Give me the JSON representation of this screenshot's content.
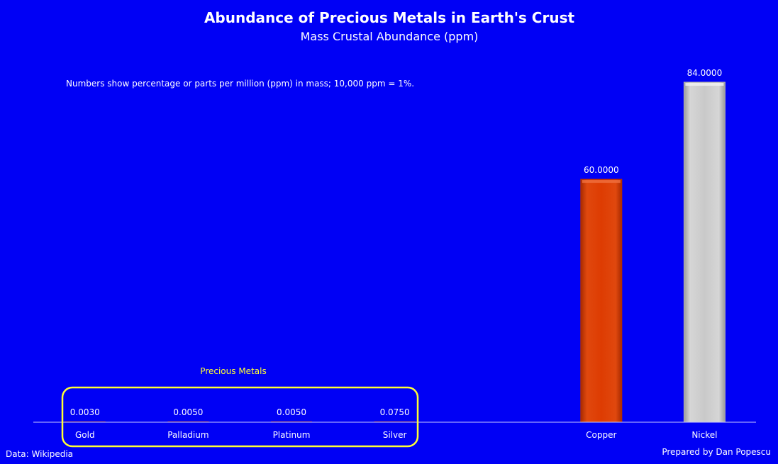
{
  "chart_data": {
    "type": "bar",
    "title": "Abundance of Precious Metals in Earth's Crust",
    "subtitle": "Mass Crustal Abundance  (ppm)",
    "note": "Numbers show percentage or parts per million (ppm) in mass; 10,000 ppm = 1%.",
    "categories": [
      "Gold",
      "Palladium",
      "Platinum",
      "Silver",
      "",
      "Copper",
      "Nickel"
    ],
    "values": [
      0.003,
      0.005,
      0.005,
      0.075,
      null,
      60,
      84
    ],
    "value_labels": [
      "0.0030",
      "0.0050",
      "0.0050",
      "0.0750",
      "",
      "60.0000",
      "84.0000"
    ],
    "bar_colors": [
      "#cc3300",
      "#cc3300",
      "#cc3300",
      "#cc3300",
      "",
      "#dd3d06",
      "#c9c9c9"
    ],
    "ylim": [
      0,
      84
    ],
    "grid": false,
    "legend": "none",
    "group_label": "Precious Metals",
    "group_categories": [
      "Gold",
      "Palladium",
      "Platinum",
      "Silver"
    ],
    "group_outline_color": "#ffff33"
  },
  "footer": {
    "source": "Data: Wikipedia",
    "credit": "Prepared by Dan Popescu"
  },
  "colors": {
    "background": "#0000f5",
    "axis": "#c8c8ff"
  }
}
